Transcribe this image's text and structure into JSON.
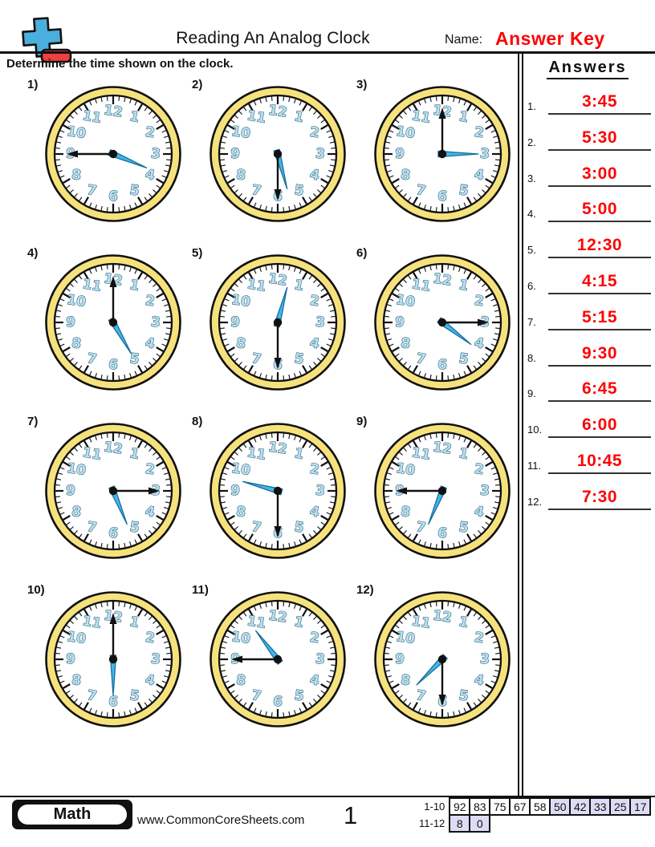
{
  "header": {
    "title": "Reading An Analog Clock",
    "name_label": "Name:",
    "name_value": "Answer Key",
    "instruction": "Determine the time shown on the clock."
  },
  "answers": {
    "heading": "Answers",
    "items": [
      {
        "num": "1.",
        "value": "3:45"
      },
      {
        "num": "2.",
        "value": "5:30"
      },
      {
        "num": "3.",
        "value": "3:00"
      },
      {
        "num": "4.",
        "value": "5:00"
      },
      {
        "num": "5.",
        "value": "12:30"
      },
      {
        "num": "6.",
        "value": "4:15"
      },
      {
        "num": "7.",
        "value": "5:15"
      },
      {
        "num": "8.",
        "value": "9:30"
      },
      {
        "num": "9.",
        "value": "6:45"
      },
      {
        "num": "10.",
        "value": "6:00"
      },
      {
        "num": "11.",
        "value": "10:45"
      },
      {
        "num": "12.",
        "value": "7:30"
      }
    ]
  },
  "clocks": [
    {
      "label": "1)",
      "time": "3:45"
    },
    {
      "label": "2)",
      "time": "5:30"
    },
    {
      "label": "3)",
      "time": "3:00"
    },
    {
      "label": "4)",
      "time": "5:00"
    },
    {
      "label": "5)",
      "time": "12:30"
    },
    {
      "label": "6)",
      "time": "4:15"
    },
    {
      "label": "7)",
      "time": "5:15"
    },
    {
      "label": "8)",
      "time": "9:30"
    },
    {
      "label": "9)",
      "time": "6:45"
    },
    {
      "label": "10)",
      "time": "6:00"
    },
    {
      "label": "11)",
      "time": "10:45"
    },
    {
      "label": "12)",
      "time": "7:30"
    }
  ],
  "clock_face_numbers": [
    "1",
    "2",
    "3",
    "4",
    "5",
    "6",
    "7",
    "8",
    "9",
    "10",
    "11",
    "12"
  ],
  "footer": {
    "subject": "Math",
    "website": "www.CommonCoreSheets.com",
    "page_number": "1",
    "grade_table": {
      "rows": [
        {
          "label": "1-10",
          "cells": [
            {
              "v": "92",
              "hl": false
            },
            {
              "v": "83",
              "hl": false
            },
            {
              "v": "75",
              "hl": false
            },
            {
              "v": "67",
              "hl": false
            },
            {
              "v": "58",
              "hl": false
            },
            {
              "v": "50",
              "hl": true
            },
            {
              "v": "42",
              "hl": true
            },
            {
              "v": "33",
              "hl": true
            },
            {
              "v": "25",
              "hl": true
            },
            {
              "v": "17",
              "hl": true
            }
          ]
        },
        {
          "label": "11-12",
          "cells": [
            {
              "v": "8",
              "hl": true
            },
            {
              "v": "0",
              "hl": true
            }
          ]
        }
      ]
    }
  },
  "colors": {
    "answer_red": "#fb0505",
    "clock_ring_yellow": "#f6e27d",
    "clock_outline": "#111111",
    "number_fill": "#b9e0f0",
    "number_outline": "#235a70",
    "hour_hand_blue": "#45b6e9",
    "hour_hand_outline": "#156e99",
    "minute_hand_black": "#111111",
    "grade_cell_highlight": "#dcdcf6",
    "logo_blue": "#4aaede",
    "logo_red": "#ee4040"
  }
}
